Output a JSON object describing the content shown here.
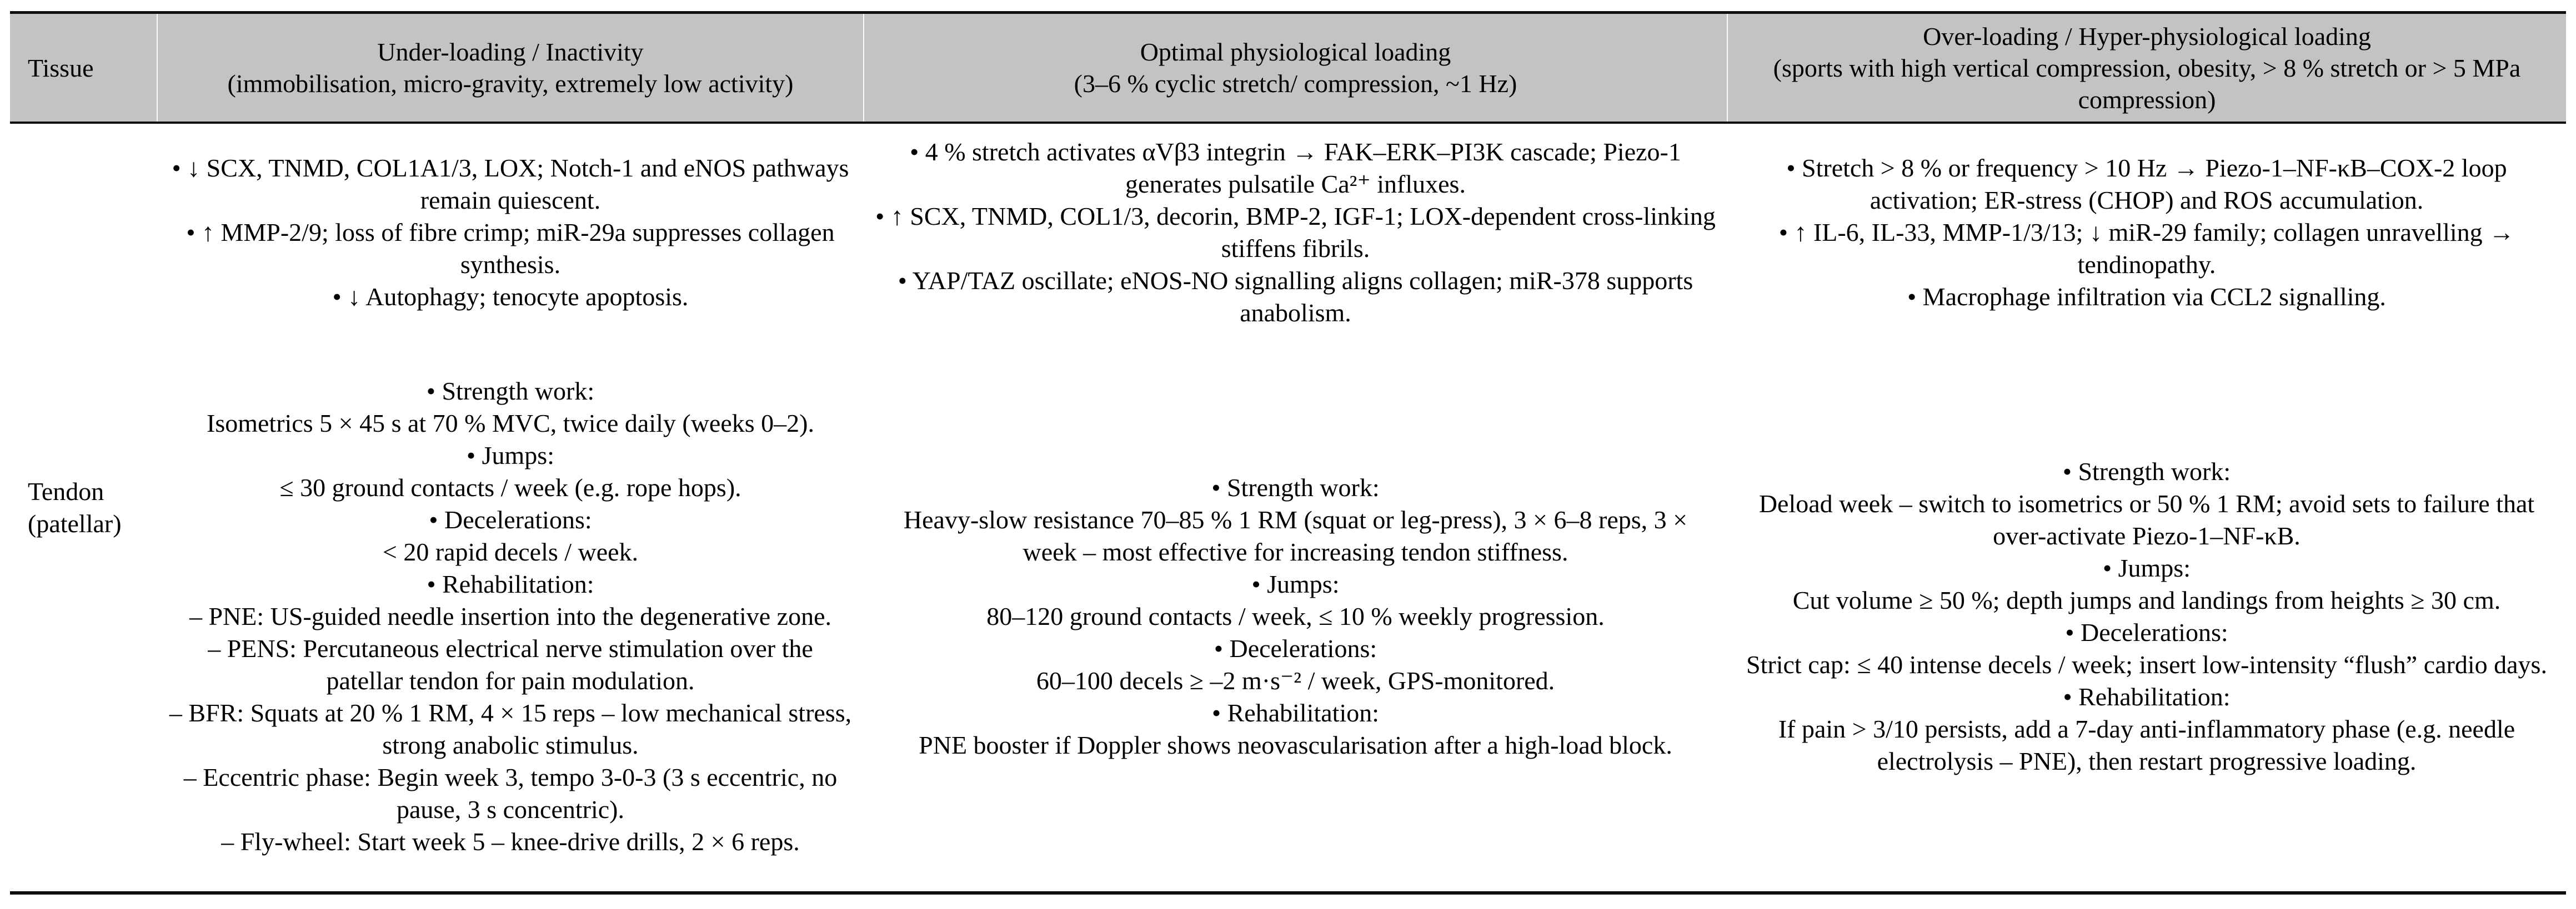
{
  "colors": {
    "header_bg": "#c3c3c3",
    "rule": "#0d0d0d",
    "text": "#000000",
    "page_bg": "#ffffff"
  },
  "header": {
    "tissue": "Tissue",
    "under": {
      "title": "Under-loading / Inactivity",
      "subtitle": "(immobilisation, micro-gravity, extremely low activity)"
    },
    "optimal": {
      "title": "Optimal physiological loading",
      "subtitle": "(3–6 % cyclic stretch/ compression, ~1 Hz)"
    },
    "over": {
      "title": "Over-loading / Hyper-physiological loading",
      "subtitle": "(sports with high vertical compression, obesity, > 8 % stretch or > 5 MPa compression)"
    }
  },
  "row": {
    "tissue": "Tendon (patellar)",
    "under": {
      "mechanisms": [
        {
          "m": "•",
          "t": "↓ SCX, TNMD, COL1A1/3, LOX; Notch-1 and eNOS pathways remain quiescent."
        },
        {
          "m": "•",
          "t": "↑ MMP-2/9; loss of fibre crimp; miR-29a suppresses collagen synthesis."
        },
        {
          "m": "•",
          "t": "↓ Autophagy; tenocyte apoptosis."
        }
      ],
      "protocol": [
        {
          "m": "•",
          "t": "Strength work:"
        },
        {
          "m": "",
          "t": "Isometrics 5 × 45 s at 70 % MVC, twice daily (weeks 0–2)."
        },
        {
          "m": "•",
          "t": "Jumps:"
        },
        {
          "m": "",
          "t": "≤ 30 ground contacts / week (e.g. rope hops)."
        },
        {
          "m": "•",
          "t": "Decelerations:"
        },
        {
          "m": "",
          "t": "< 20 rapid decels / week."
        },
        {
          "m": "•",
          "t": "Rehabilitation:"
        },
        {
          "m": "–",
          "t": "PNE: US-guided needle insertion into the degenerative zone."
        },
        {
          "m": "–",
          "t": "PENS: Percutaneous electrical nerve stimulation over the patellar tendon for pain modulation."
        },
        {
          "m": "–",
          "t": "BFR: Squats at 20 % 1 RM, 4 × 15 reps – low mechanical stress, strong anabolic stimulus."
        },
        {
          "m": "–",
          "t": "Eccentric phase: Begin week 3, tempo 3-0-3 (3 s eccentric, no pause, 3 s concentric)."
        },
        {
          "m": "–",
          "t": "Fly-wheel: Start week 5 – knee-drive drills, 2 × 6 reps."
        }
      ]
    },
    "optimal": {
      "mechanisms": [
        {
          "m": "•",
          "t": "4 % stretch activates αVβ3 integrin → FAK–ERK–PI3K cascade; Piezo-1 generates pulsatile Ca²⁺ influxes."
        },
        {
          "m": "•",
          "t": "↑ SCX, TNMD, COL1/3, decorin, BMP-2, IGF-1; LOX-dependent cross-linking stiffens fibrils."
        },
        {
          "m": "•",
          "t": "YAP/TAZ oscillate; eNOS-NO signalling aligns collagen; miR-378 supports anabolism."
        }
      ],
      "protocol": [
        {
          "m": "•",
          "t": "Strength work:"
        },
        {
          "m": "",
          "t": "Heavy-slow resistance 70–85 % 1 RM (squat or leg-press), 3 × 6–8 reps, 3 × week – most effective for increasing tendon stiffness."
        },
        {
          "m": "•",
          "t": "Jumps:"
        },
        {
          "m": "",
          "t": "80–120 ground contacts / week, ≤ 10 % weekly progression."
        },
        {
          "m": "•",
          "t": "Decelerations:"
        },
        {
          "m": "",
          "t": "60–100 decels ≥ –2 m·s⁻² / week, GPS-monitored."
        },
        {
          "m": "•",
          "t": "Rehabilitation:"
        },
        {
          "m": "",
          "t": "PNE booster if Doppler shows neovascularisation after a high-load block."
        }
      ]
    },
    "over": {
      "mechanisms": [
        {
          "m": "•",
          "t": "Stretch > 8 % or frequency > 10 Hz → Piezo-1–NF-κB–COX-2 loop activation; ER-stress (CHOP) and ROS accumulation."
        },
        {
          "m": "•",
          "t": "↑ IL-6, IL-33, MMP-1/3/13; ↓ miR-29 family; collagen unravelling → tendinopathy."
        },
        {
          "m": "•",
          "t": "Macrophage infiltration via CCL2 signalling."
        }
      ],
      "protocol": [
        {
          "m": "•",
          "t": "Strength work:"
        },
        {
          "m": "",
          "t": "Deload week – switch to isometrics or 50 % 1 RM; avoid sets to failure that over-activate Piezo-1–NF-κB."
        },
        {
          "m": "•",
          "t": "Jumps:"
        },
        {
          "m": "",
          "t": "Cut volume ≥ 50 %; depth jumps and landings from heights ≥ 30 cm."
        },
        {
          "m": "•",
          "t": "Decelerations:"
        },
        {
          "m": "",
          "t": "Strict cap: ≤ 40 intense decels / week; insert low-intensity “flush” cardio days."
        },
        {
          "m": "•",
          "t": "Rehabilitation:"
        },
        {
          "m": "",
          "t": "If pain > 3/10 persists, add a 7-day anti-inflammatory phase (e.g. needle electrolysis – PNE), then restart progressive loading."
        }
      ]
    }
  }
}
